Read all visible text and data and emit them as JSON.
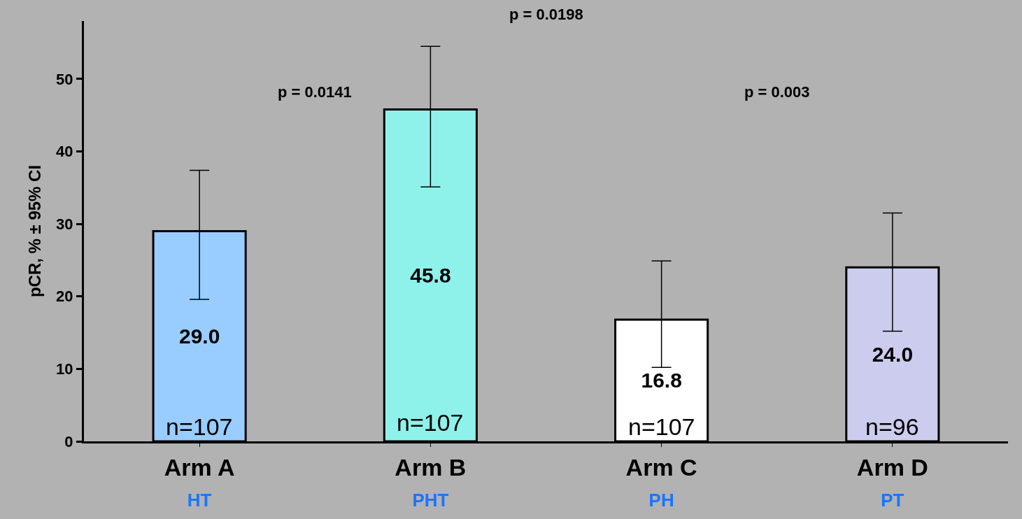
{
  "chart_data": {
    "type": "bar",
    "categories": [
      "Arm A\nHT",
      "Arm B\nPHT",
      "Arm C\nPH",
      "Arm D\nPT"
    ],
    "values": [
      29.0,
      45.8,
      16.8,
      24.0
    ],
    "colors": [
      "#99ccff",
      "#8ef2ea",
      "#ffffff",
      "#ccccee"
    ],
    "errors": [
      [
        19.6,
        37.4
      ],
      [
        35.1,
        54.5
      ],
      [
        10.2,
        24.9
      ],
      [
        15.2,
        31.5
      ]
    ],
    "value_labels": [
      "29.0",
      "45.8",
      "16.8",
      "24.0"
    ],
    "ylabel": "pCR, % ± 95% CI",
    "ylim": [
      0,
      58
    ],
    "yticks": [
      0,
      10,
      20,
      30,
      40,
      50
    ],
    "grid": false,
    "legend": false,
    "annotations": [
      "n=107",
      "n=107",
      "n=107",
      "n=96",
      "p = 0.0198",
      "p = 0.0141",
      "p = 0.003"
    ]
  }
}
